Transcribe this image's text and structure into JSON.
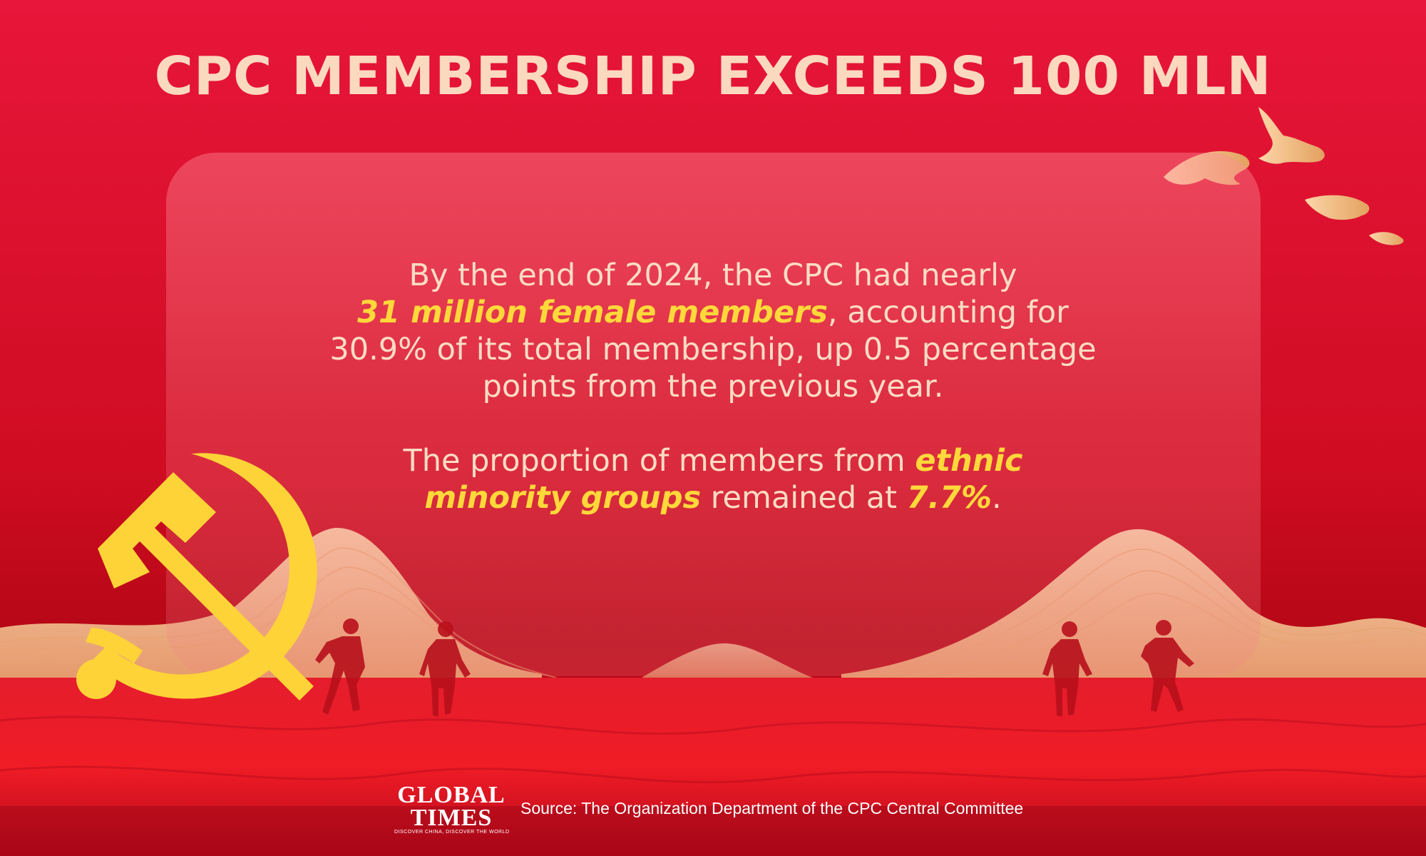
{
  "title": "CPC MEMBERSHIP EXCEEDS 100 MLN",
  "paragraph1": {
    "line1": "By the end of 2024, the CPC had nearly",
    "highlight": "31 million female members",
    "after_highlight": ", accounting for",
    "line3": "30.9% of its total membership, up 0.5 percentage",
    "line4": "points from the previous year."
  },
  "paragraph2": {
    "lead": "The proportion of members from ",
    "highlight1a": "ethnic",
    "highlight1b": "minority groups",
    "middle": " remained at ",
    "highlight2": "7.7%",
    "end": "."
  },
  "source": "Source: The Organization Department of the CPC Central Committee",
  "logo": {
    "line1": "GLOBAL",
    "line2": "TIMES",
    "tagline": "DISCOVER CHINA, DISCOVER THE WORLD"
  },
  "colors": {
    "background": "#c8101c",
    "title": "#fbd9bf",
    "highlight": "#ffd83a",
    "emblem": "#fdd338"
  }
}
